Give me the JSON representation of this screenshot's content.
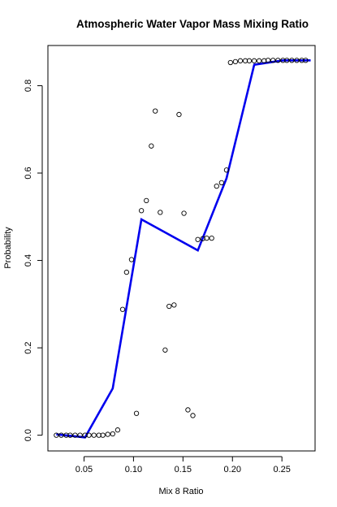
{
  "chart_data": {
    "type": "scatter",
    "title": "Atmospheric Water Vapor Mass Mixing Ratio",
    "xlabel": "Mix 8 Ratio",
    "ylabel": "Probability",
    "xlim": [
      0.0135,
      0.2835
    ],
    "ylim": [
      -0.036,
      0.892
    ],
    "xticks": [
      0.05,
      0.1,
      0.15,
      0.2,
      0.25
    ],
    "xtick_labels": [
      "0.05",
      "0.10",
      "0.15",
      "0.20",
      "0.25"
    ],
    "yticks": [
      0.0,
      0.2,
      0.4,
      0.6,
      0.8
    ],
    "ytick_labels": [
      "0.0",
      "0.2",
      "0.4",
      "0.6",
      "0.8"
    ],
    "grid": false,
    "line_color": "#0000ee",
    "series": [
      {
        "kind": "points",
        "x": [
          0.022,
          0.027,
          0.032,
          0.036,
          0.041,
          0.046,
          0.051,
          0.055,
          0.06,
          0.065,
          0.069,
          0.074,
          0.079,
          0.084,
          0.089,
          0.093,
          0.098,
          0.103,
          0.108,
          0.113,
          0.118,
          0.122,
          0.127,
          0.132,
          0.136,
          0.141,
          0.146,
          0.151,
          0.155,
          0.16,
          0.165,
          0.17,
          0.174,
          0.179,
          0.184,
          0.189,
          0.194,
          0.198,
          0.203,
          0.208,
          0.213,
          0.217,
          0.222,
          0.227,
          0.232,
          0.236,
          0.241,
          0.246,
          0.251,
          0.255,
          0.26,
          0.265,
          0.27,
          0.274
        ],
        "y": [
          0.0,
          0.0,
          0.0,
          0.0,
          0.0,
          0.0,
          0.0,
          0.0,
          0.0,
          0.0,
          0.0,
          0.002,
          0.003,
          0.012,
          0.288,
          0.373,
          0.402,
          0.05,
          0.514,
          0.537,
          0.662,
          0.742,
          0.51,
          0.195,
          0.295,
          0.298,
          0.734,
          0.508,
          0.058,
          0.045,
          0.448,
          0.45,
          0.451,
          0.451,
          0.57,
          0.578,
          0.607,
          0.853,
          0.855,
          0.857,
          0.857,
          0.857,
          0.857,
          0.857,
          0.857,
          0.858,
          0.858,
          0.858,
          0.858,
          0.858,
          0.858,
          0.858,
          0.858,
          0.858
        ]
      },
      {
        "kind": "line",
        "x": [
          0.022,
          0.051,
          0.079,
          0.108,
          0.165,
          0.194,
          0.222,
          0.251,
          0.279
        ],
        "y": [
          0.002,
          -0.005,
          0.107,
          0.494,
          0.423,
          0.588,
          0.848,
          0.858,
          0.858
        ]
      }
    ]
  }
}
